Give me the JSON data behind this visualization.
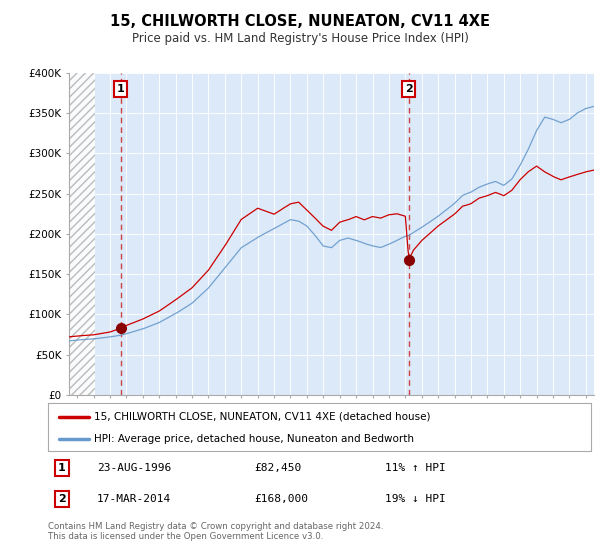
{
  "title": "15, CHILWORTH CLOSE, NUNEATON, CV11 4XE",
  "subtitle": "Price paid vs. HM Land Registry's House Price Index (HPI)",
  "legend_line1": "15, CHILWORTH CLOSE, NUNEATON, CV11 4XE (detached house)",
  "legend_line2": "HPI: Average price, detached house, Nuneaton and Bedworth",
  "footer": "Contains HM Land Registry data © Crown copyright and database right 2024.\nThis data is licensed under the Open Government Licence v3.0.",
  "annotation1_date": "23-AUG-1996",
  "annotation1_price": "£82,450",
  "annotation1_hpi": "11% ↑ HPI",
  "annotation2_date": "17-MAR-2014",
  "annotation2_price": "£168,000",
  "annotation2_hpi": "19% ↓ HPI",
  "ylim": [
    0,
    400000
  ],
  "yticks": [
    0,
    50000,
    100000,
    150000,
    200000,
    250000,
    300000,
    350000,
    400000
  ],
  "ytick_labels": [
    "£0",
    "£50K",
    "£100K",
    "£150K",
    "£200K",
    "£250K",
    "£300K",
    "£350K",
    "£400K"
  ],
  "xlim_start": 1993.5,
  "xlim_end": 2025.5,
  "hatch_end": 1995.08,
  "background_color": "#dce9f8",
  "red_line_color": "#cc0000",
  "blue_line_color": "#6699cc",
  "marker_color": "#880000",
  "dashed_line_color": "#cc4444",
  "point1_x": 1996.64,
  "point1_y": 82450,
  "point2_x": 2014.21,
  "point2_y": 168000
}
